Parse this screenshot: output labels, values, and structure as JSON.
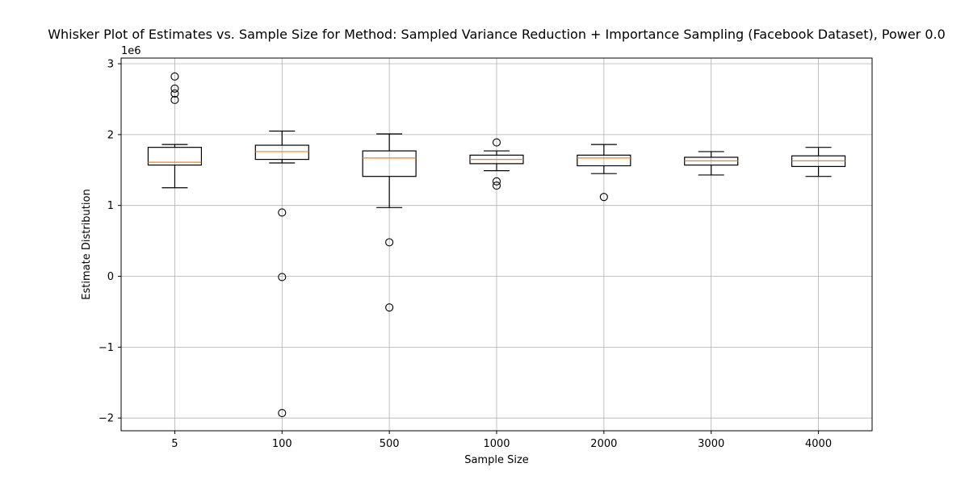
{
  "chart_data": {
    "type": "box",
    "title": "Whisker Plot of Estimates vs. Sample Size for Method: Sampled Variance Reduction + Importance Sampling (Facebook Dataset), Power 0.0",
    "xlabel": "Sample Size",
    "ylabel": "Estimate Distribution",
    "y_scale_label": "1e6",
    "y_unit_multiplier": 1000000,
    "ylim": [
      -2.18,
      3.08
    ],
    "yticks": [
      -2,
      -1,
      0,
      1,
      2,
      3
    ],
    "ytick_labels": [
      "−2",
      "−1",
      "0",
      "1",
      "2",
      "3"
    ],
    "grid": true,
    "colors": {
      "box": "#000000",
      "median": "#ff7f0e",
      "grid": "#b0b0b0"
    },
    "categories": [
      "5",
      "100",
      "500",
      "1000",
      "2000",
      "3000",
      "4000"
    ],
    "boxes": [
      {
        "category": "5",
        "whisker_low": 1.25,
        "q1": 1.57,
        "median": 1.61,
        "q3": 1.82,
        "whisker_high": 1.86,
        "outliers": [
          2.82,
          2.65,
          2.58,
          2.49
        ]
      },
      {
        "category": "100",
        "whisker_low": 1.6,
        "q1": 1.65,
        "median": 1.76,
        "q3": 1.85,
        "whisker_high": 2.05,
        "outliers": [
          0.9,
          -0.01,
          -1.93
        ]
      },
      {
        "category": "500",
        "whisker_low": 0.97,
        "q1": 1.41,
        "median": 1.67,
        "q3": 1.77,
        "whisker_high": 2.01,
        "outliers": [
          0.48,
          -0.44
        ]
      },
      {
        "category": "1000",
        "whisker_low": 1.49,
        "q1": 1.59,
        "median": 1.65,
        "q3": 1.71,
        "whisker_high": 1.77,
        "outliers": [
          1.89,
          1.34,
          1.28
        ]
      },
      {
        "category": "2000",
        "whisker_low": 1.45,
        "q1": 1.56,
        "median": 1.67,
        "q3": 1.71,
        "whisker_high": 1.86,
        "outliers": [
          1.12
        ]
      },
      {
        "category": "3000",
        "whisker_low": 1.43,
        "q1": 1.57,
        "median": 1.63,
        "q3": 1.68,
        "whisker_high": 1.76,
        "outliers": []
      },
      {
        "category": "4000",
        "whisker_low": 1.41,
        "q1": 1.55,
        "median": 1.63,
        "q3": 1.7,
        "whisker_high": 1.82,
        "outliers": []
      }
    ]
  }
}
